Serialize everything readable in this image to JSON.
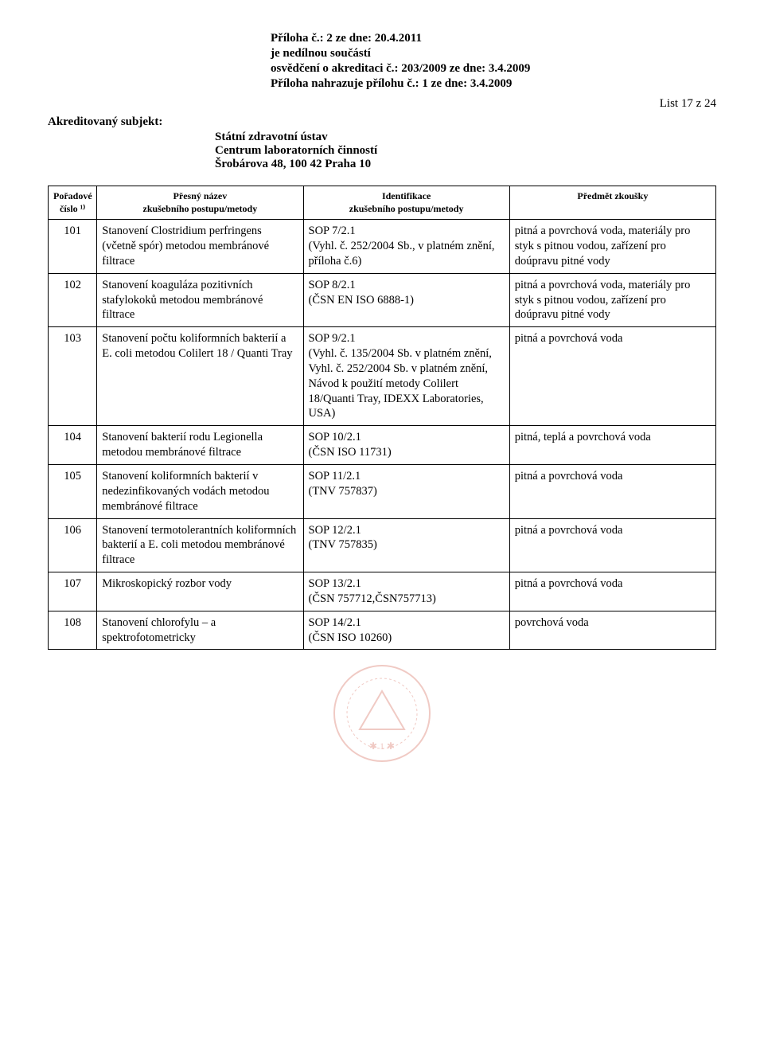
{
  "header": {
    "line1": "Příloha č.: 2   ze dne: 20.4.2011",
    "line2": "je nedílnou součástí",
    "line3": "osvědčení o akreditaci č.: 203/2009   ze dne: 3.4.2009",
    "line4": "Příloha nahrazuje přílohu č.: 1   ze dne: 3.4.2009"
  },
  "page_info": "List 17 z 24",
  "subject_label": "Akreditovaný subjekt:",
  "center": {
    "l1": "Státní zdravotní ústav",
    "l2": "Centrum laboratorních činností",
    "l3": "Šrobárova 48, 100 42 Praha 10"
  },
  "columns": {
    "c1a": "Pořadové",
    "c1b": "číslo ¹⁾",
    "c2a": "Přesný název",
    "c2b": "zkušebního postupu/metody",
    "c3a": "Identifikace",
    "c3b": "zkušebního postupu/metody",
    "c4": "Předmět zkoušky"
  },
  "rows": [
    {
      "n": "101",
      "name": "Stanovení Clostridium perfringens (včetně spór) metodou membránové filtrace",
      "id": "SOP 7/2.1\n(Vyhl. č. 252/2004 Sb., v platném znění, příloha č.6)",
      "subj": "pitná a povrchová voda, materiály pro styk s pitnou vodou, zařízení pro doúpravu pitné vody"
    },
    {
      "n": "102",
      "name": "Stanovení koaguláza pozitivních stafylokoků metodou membránové filtrace",
      "id": "SOP 8/2.1\n(ČSN EN ISO 6888-1)",
      "subj": "pitná a povrchová voda, materiály pro styk s pitnou vodou, zařízení pro doúpravu pitné vody"
    },
    {
      "n": "103",
      "name": "Stanovení počtu koliformních bakterií a E. coli metodou Colilert 18 / Quanti Tray",
      "id": "SOP 9/2.1\n(Vyhl. č. 135/2004 Sb. v platném znění,  Vyhl. č. 252/2004 Sb. v platném znění, Návod k použití metody Colilert 18/Quanti Tray, IDEXX Laboratories, USA)",
      "subj": "pitná a povrchová voda"
    },
    {
      "n": "104",
      "name": "Stanovení bakterií rodu Legionella metodou membránové filtrace",
      "id": "SOP 10/2.1\n(ČSN ISO 11731)",
      "subj": "pitná, teplá a povrchová voda"
    },
    {
      "n": "105",
      "name": "Stanovení koliformních bakterií v nedezinfikovaných vodách metodou membránové filtrace",
      "id": "SOP 11/2.1\n(TNV 757837)",
      "subj": "pitná a povrchová voda"
    },
    {
      "n": "106",
      "name": "Stanovení termotolerantních koliformních bakterií a E. coli metodou membránové filtrace",
      "id": "SOP 12/2.1\n(TNV 757835)",
      "subj": "pitná a povrchová voda"
    },
    {
      "n": "107",
      "name": "Mikroskopický rozbor vody",
      "id": "SOP 13/2.1\n(ČSN 757712,ČSN757713)",
      "subj": "pitná a povrchová voda"
    },
    {
      "n": "108",
      "name": "Stanovení chlorofylu – a spektrofotometricky",
      "id": "SOP 14/2.1\n(ČSN ISO 10260)",
      "subj": "povrchová voda"
    }
  ],
  "stamp_color": "#d66a5a"
}
